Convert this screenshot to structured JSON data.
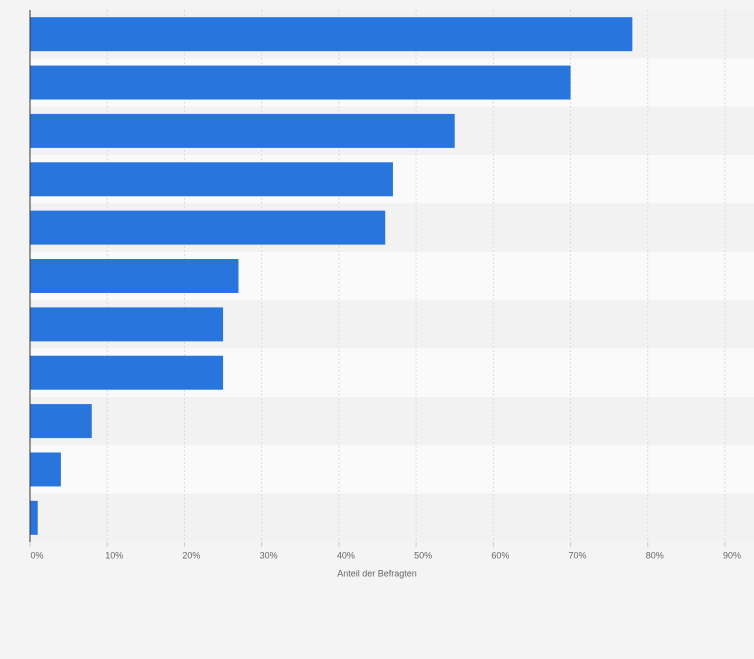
{
  "chart_data": {
    "type": "bar",
    "orientation": "horizontal",
    "x_label": "Anteil der Befragten",
    "categories": [
      null,
      null,
      null,
      null,
      null,
      null,
      null,
      null,
      null,
      null,
      null
    ],
    "values": [
      78,
      70,
      55,
      47,
      46,
      27,
      25,
      25,
      8,
      4,
      1
    ],
    "color": "#2876dd",
    "xlim": [
      0,
      90
    ],
    "xticks": [
      {
        "value": 0,
        "label": "0%"
      },
      {
        "value": 10,
        "label": "10%"
      },
      {
        "value": 20,
        "label": "20%"
      },
      {
        "value": 30,
        "label": "30%"
      },
      {
        "value": 40,
        "label": "40%"
      },
      {
        "value": 50,
        "label": "50%"
      },
      {
        "value": 60,
        "label": "60%"
      },
      {
        "value": 70,
        "label": "70%"
      },
      {
        "value": 80,
        "label": "80%"
      },
      {
        "value": 90,
        "label": "90%"
      }
    ],
    "grid": true
  }
}
